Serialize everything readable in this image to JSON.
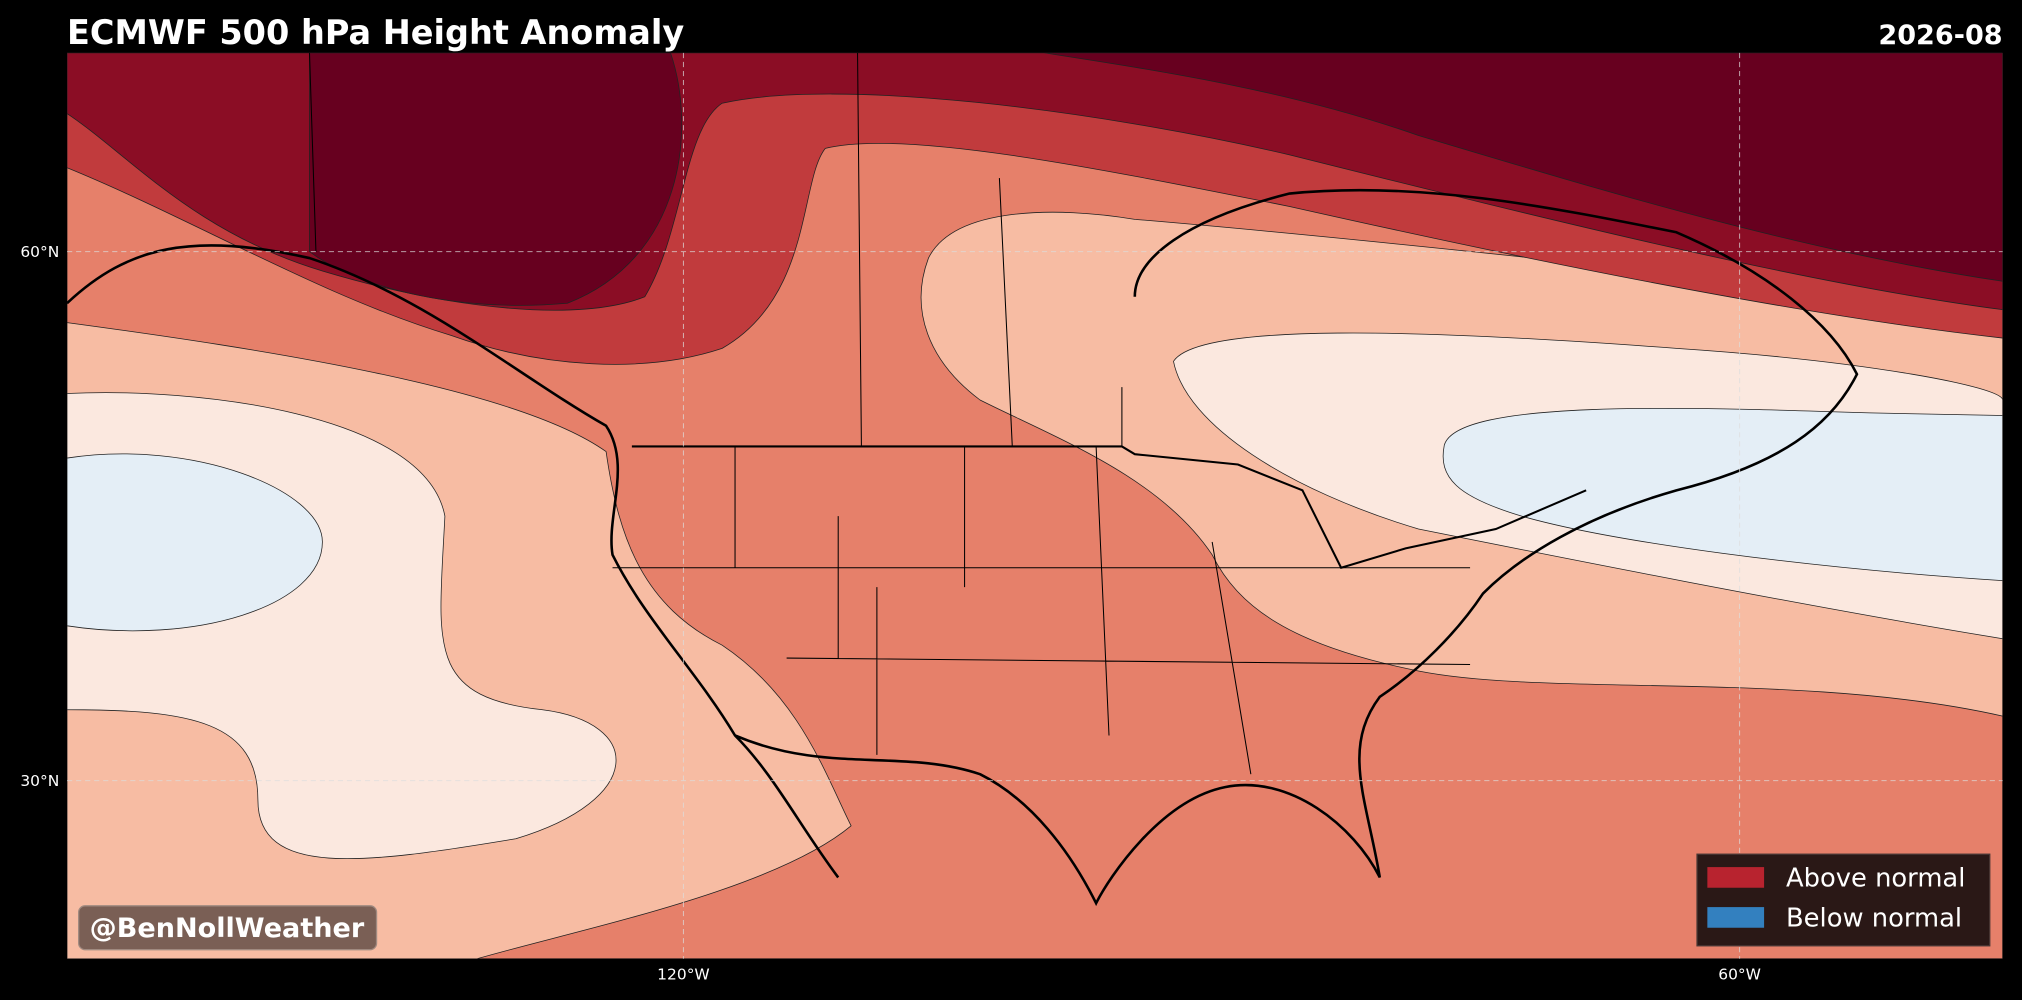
{
  "header": {
    "title": "ECMWF 500 hPa Height Anomaly",
    "date": "2026-08"
  },
  "map": {
    "lat_labels": [
      "60°N",
      "30°N"
    ],
    "lon_labels": [
      "120°W",
      "60°W"
    ]
  },
  "legend": [
    {
      "label": "Above normal",
      "color": "#b8232f"
    },
    {
      "label": "Below normal",
      "color": "#3380bf"
    }
  ],
  "watermark": "@BenNollWeather"
}
